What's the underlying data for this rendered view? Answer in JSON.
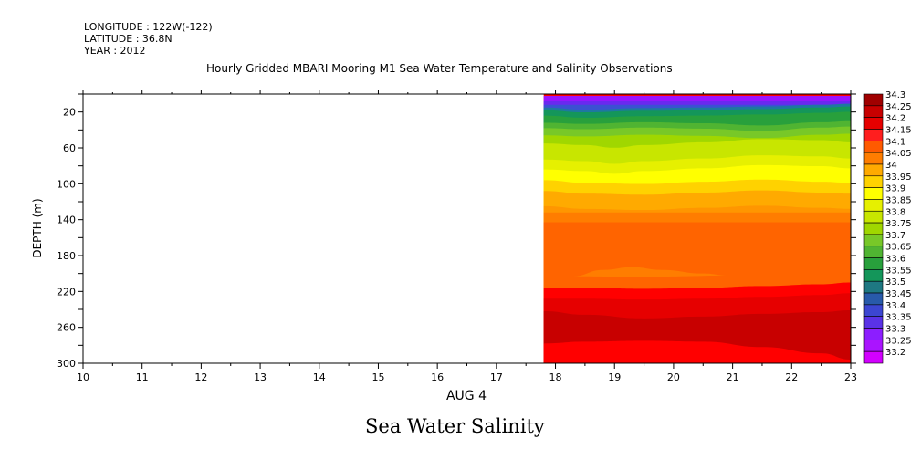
{
  "header": {
    "longitude": "LONGITUDE : 122W(-122)",
    "latitude": "LATITUDE : 36.8N",
    "year": "YEAR : 2012"
  },
  "title": "Hourly Gridded MBARI Mooring M1 Sea Water Temperature and Salinity Observations",
  "bottom_title": "Sea Water Salinity",
  "chart_data": {
    "type": "heatmap",
    "title": "Hourly Gridded MBARI Mooring M1 Sea Water Temperature and Salinity Observations",
    "xlabel": "AUG 4",
    "ylabel": "DEPTH (m)",
    "x_ticks": [
      "10",
      "11",
      "12",
      "13",
      "14",
      "15",
      "16",
      "17",
      "18",
      "19",
      "20",
      "21",
      "22",
      "23"
    ],
    "y_ticks": [
      "20",
      "60",
      "100",
      "140",
      "180",
      "220",
      "260",
      "300"
    ],
    "xlim": [
      10,
      23
    ],
    "ylim": [
      0,
      300
    ],
    "y_inverted": true,
    "data_start_hour": 17.8,
    "colorbar_levels": [
      "34.3",
      "34.25",
      "34.2",
      "34.15",
      "34.1",
      "34.05",
      "34",
      "33.95",
      "33.9",
      "33.85",
      "33.8",
      "33.75",
      "33.7",
      "33.65",
      "33.6",
      "33.55",
      "33.5",
      "33.45",
      "33.4",
      "33.35",
      "33.3",
      "33.25",
      "33.2"
    ],
    "colorbar_colors": [
      "#a00000",
      "#c80000",
      "#e60000",
      "#ff1e1e",
      "#ff5a00",
      "#ff7d00",
      "#ffaa00",
      "#ffd200",
      "#ffff00",
      "#e6f000",
      "#c8e600",
      "#a0d700",
      "#78c828",
      "#50b432",
      "#28a03c",
      "#14965a",
      "#1e7882",
      "#285aaa",
      "#3c46d2",
      "#5a32e6",
      "#8c1eff",
      "#aa14ff",
      "#d200ff"
    ],
    "series": [
      {
        "name": "33.3",
        "x": [
          17.8,
          18.5,
          19.5,
          20.5,
          21.5,
          22.5,
          23
        ],
        "y": [
          5,
          5,
          5,
          5,
          5,
          5,
          5
        ]
      },
      {
        "name": "33.55",
        "x": [
          17.8,
          18.5,
          19.5,
          20.5,
          21.5,
          22.5,
          23
        ],
        "y": [
          22,
          26,
          23,
          22,
          20,
          17,
          15
        ]
      },
      {
        "name": "33.8",
        "x": [
          17.8,
          18.5,
          19.5,
          20.5,
          21.5,
          22.5,
          23
        ],
        "y": [
          45,
          47,
          44,
          46,
          50,
          44,
          42
        ]
      },
      {
        "name": "33.9",
        "x": [
          17.8,
          18.5,
          19,
          19.5,
          20.5,
          21.5,
          22.5,
          23
        ],
        "y": [
          72,
          75,
          80,
          75,
          70,
          64,
          66,
          70
        ]
      },
      {
        "name": "34.0",
        "x": [
          17.8,
          18.5,
          19.5,
          20.5,
          21.5,
          22.5,
          23
        ],
        "y": [
          105,
          110,
          112,
          108,
          104,
          108,
          110
        ]
      },
      {
        "name": "34.1",
        "x": [
          17.8,
          18.5,
          19.5,
          20.5,
          21.5,
          22.5,
          23
        ],
        "y": [
          143,
          143,
          143,
          143,
          143,
          143,
          143
        ]
      },
      {
        "name": "34.05 (lens)",
        "x": [
          18.3,
          18.8,
          19.3,
          19.8,
          20.5,
          20.9
        ],
        "y": [
          203,
          196,
          193,
          196,
          200,
          202
        ]
      },
      {
        "name": "34.2",
        "x": [
          17.8,
          18.5,
          19.5,
          20.5,
          21.5,
          22.5,
          23
        ],
        "y": [
          216,
          216,
          217,
          216,
          214,
          212,
          210
        ]
      },
      {
        "name": "34.25",
        "x": [
          17.8,
          18.5,
          19.5,
          20.5,
          21.5,
          22.5,
          23
        ],
        "y": [
          242,
          246,
          250,
          248,
          245,
          243,
          241
        ]
      },
      {
        "name": "34.3",
        "x": [
          17.8,
          18.5,
          19.5,
          20.5,
          21.5,
          22.5,
          23
        ],
        "y": [
          278,
          276,
          275,
          276,
          282,
          289,
          296
        ]
      }
    ]
  }
}
